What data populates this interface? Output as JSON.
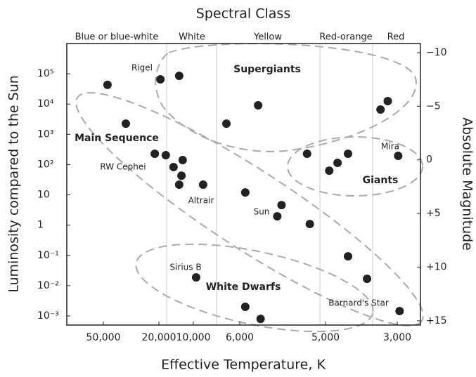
{
  "chart_data": {
    "type": "scatter",
    "title": "Spectral Class",
    "x_label": "Effective Temperature, K",
    "y_label": "Luminosity compared to the Sun",
    "y2_label": "Absolute Magnitude",
    "spectral_classes": [
      "Blue or blue-white",
      "White",
      "Yellow",
      "Red-orange",
      "Red"
    ],
    "regions": [
      "Supergiants",
      "Main Sequence",
      "Giants",
      "White Dwarfs"
    ],
    "star_labels": [
      "Rigel",
      "RW Cephei",
      "Altrair",
      "Sun",
      "Mira",
      "Barnard's Star",
      "Sirius B"
    ],
    "color": "#222222",
    "xlim": [
      90000,
      2540
    ],
    "xticks": [
      {
        "value": 50000,
        "label": "50,000"
      },
      {
        "value": 20000,
        "label": "20,000"
      },
      {
        "value": 10000,
        "label": "10,000"
      },
      {
        "value": 6000,
        "label": "6,000"
      },
      {
        "value": 5000,
        "label": "5,000"
      },
      {
        "value": 3000,
        "label": "3,000"
      }
    ],
    "ylim": [
      0.0005,
      1000000
    ],
    "y_log": true,
    "yticks": [
      {
        "value": 100000,
        "label": "10⁵"
      },
      {
        "value": 10000,
        "label": "10⁴"
      },
      {
        "value": 1000,
        "label": "10³"
      },
      {
        "value": 100,
        "label": "10²"
      },
      10,
      1,
      {
        "value": 0.1,
        "label": "10⁻¹"
      },
      {
        "value": 0.01,
        "label": "10⁻²"
      },
      {
        "value": 0.001,
        "label": "10⁻³"
      }
    ],
    "y2lim": [
      -10.85,
      15.4
    ],
    "y2_inverted": true,
    "y2ticks": [
      {
        "value": -10,
        "label": "−10"
      },
      {
        "value": -5,
        "label": "−5"
      },
      0,
      {
        "value": 5,
        "label": "+5"
      },
      {
        "value": 10,
        "label": "+10"
      },
      {
        "value": 15,
        "label": "+15"
      }
    ],
    "x": [
      46700,
      34500,
      19400,
      13300,
      6950,
      5770,
      21400,
      17400,
      14900,
      12400,
      12700,
      13300,
      8980,
      5930,
      5490,
      5540,
      5170,
      5200,
      4870,
      4590,
      4260,
      3380,
      3210,
      2980,
      4260,
      3720,
      2950,
      9700,
      5930,
      5740
    ],
    "values": [
      43000,
      2260,
      65600,
      85700,
      2260,
      9080,
      228,
      205,
      83,
      141,
      43,
      21.7,
      21.7,
      12,
      4.6,
      1.96,
      1.09,
      228,
      63,
      114,
      228,
      6590,
      12500,
      194,
      0.093,
      0.0169,
      0.00145,
      0.0188,
      0.002,
      0.0008
    ]
  }
}
